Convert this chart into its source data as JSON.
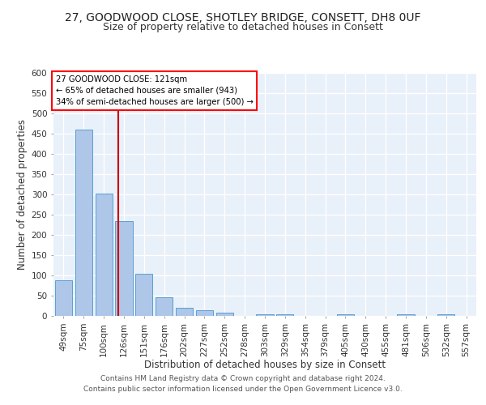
{
  "title_line1": "27, GOODWOOD CLOSE, SHOTLEY BRIDGE, CONSETT, DH8 0UF",
  "title_line2": "Size of property relative to detached houses in Consett",
  "xlabel": "Distribution of detached houses by size in Consett",
  "ylabel": "Number of detached properties",
  "bar_labels": [
    "49sqm",
    "75sqm",
    "100sqm",
    "126sqm",
    "151sqm",
    "176sqm",
    "202sqm",
    "227sqm",
    "252sqm",
    "278sqm",
    "303sqm",
    "329sqm",
    "354sqm",
    "379sqm",
    "405sqm",
    "430sqm",
    "455sqm",
    "481sqm",
    "506sqm",
    "532sqm",
    "557sqm"
  ],
  "bar_values": [
    88,
    460,
    302,
    235,
    105,
    47,
    20,
    14,
    8,
    0,
    5,
    5,
    0,
    0,
    5,
    0,
    0,
    5,
    0,
    5,
    0
  ],
  "bar_color": "#aec6e8",
  "bar_edge_color": "#5a9fd4",
  "background_color": "#e8f0fa",
  "grid_color": "#ffffff",
  "annotation_text": "27 GOODWOOD CLOSE: 121sqm\n← 65% of detached houses are smaller (943)\n34% of semi-detached houses are larger (500) →",
  "annotation_box_color": "white",
  "annotation_box_edge": "red",
  "red_line_x": 2.73,
  "ylim": [
    0,
    600
  ],
  "yticks": [
    0,
    50,
    100,
    150,
    200,
    250,
    300,
    350,
    400,
    450,
    500,
    550,
    600
  ],
  "footer_line1": "Contains HM Land Registry data © Crown copyright and database right 2024.",
  "footer_line2": "Contains public sector information licensed under the Open Government Licence v3.0.",
  "title_fontsize": 10,
  "subtitle_fontsize": 9,
  "axis_label_fontsize": 8.5,
  "tick_fontsize": 7.5,
  "footer_fontsize": 6.5
}
